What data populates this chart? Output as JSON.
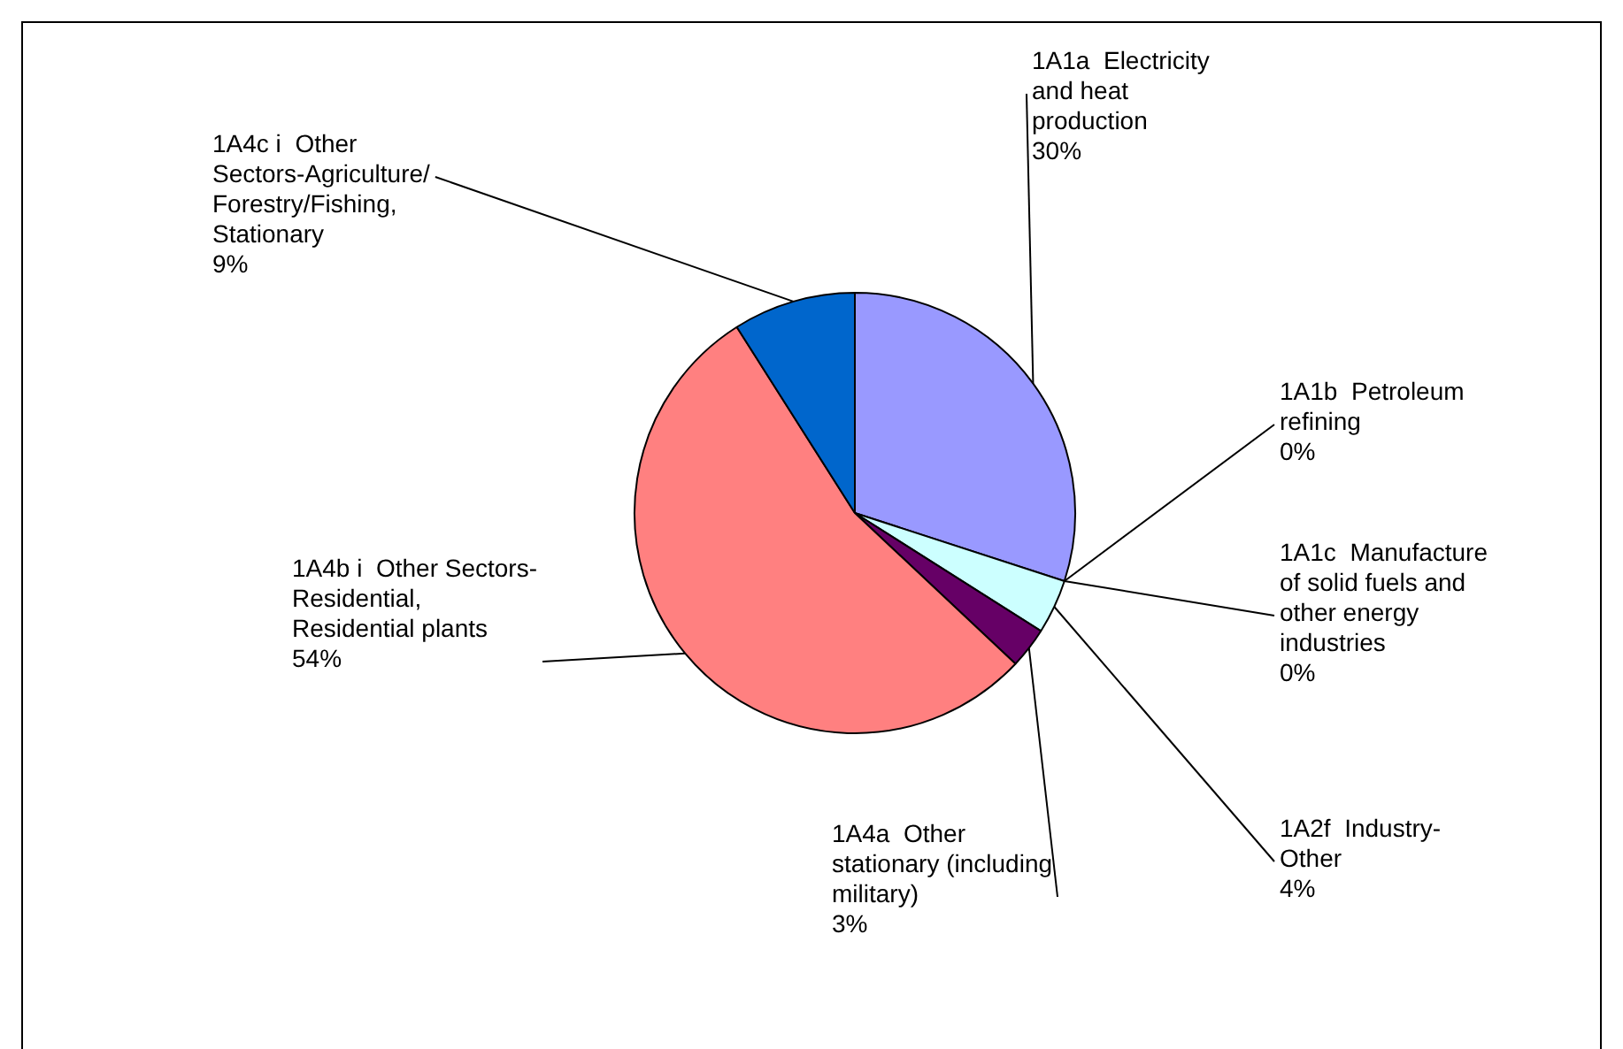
{
  "chart_data": {
    "type": "pie",
    "categories": [
      "1A1a  Electricity and heat production",
      "1A1b  Petroleum refining",
      "1A1c  Manufacture of solid fuels and other energy industries",
      "1A2f  Industry-Other",
      "1A4a  Other stationary (including military)",
      "1A4b i  Other Sectors-Residential, Residential plants",
      "1A4c i  Other Sectors-Agriculture/Forestry/Fishing, Stationary"
    ],
    "values": [
      30,
      0,
      0,
      4,
      3,
      54,
      9
    ],
    "colors": [
      "#9999ff",
      "#993366",
      "#ffffcc",
      "#ccffff",
      "#660066",
      "#ff8080",
      "#0066cc"
    ],
    "value_labels": [
      "30%",
      "0%",
      "0%",
      "4%",
      "3%",
      "54%",
      "9%"
    ],
    "legend": false
  }
}
